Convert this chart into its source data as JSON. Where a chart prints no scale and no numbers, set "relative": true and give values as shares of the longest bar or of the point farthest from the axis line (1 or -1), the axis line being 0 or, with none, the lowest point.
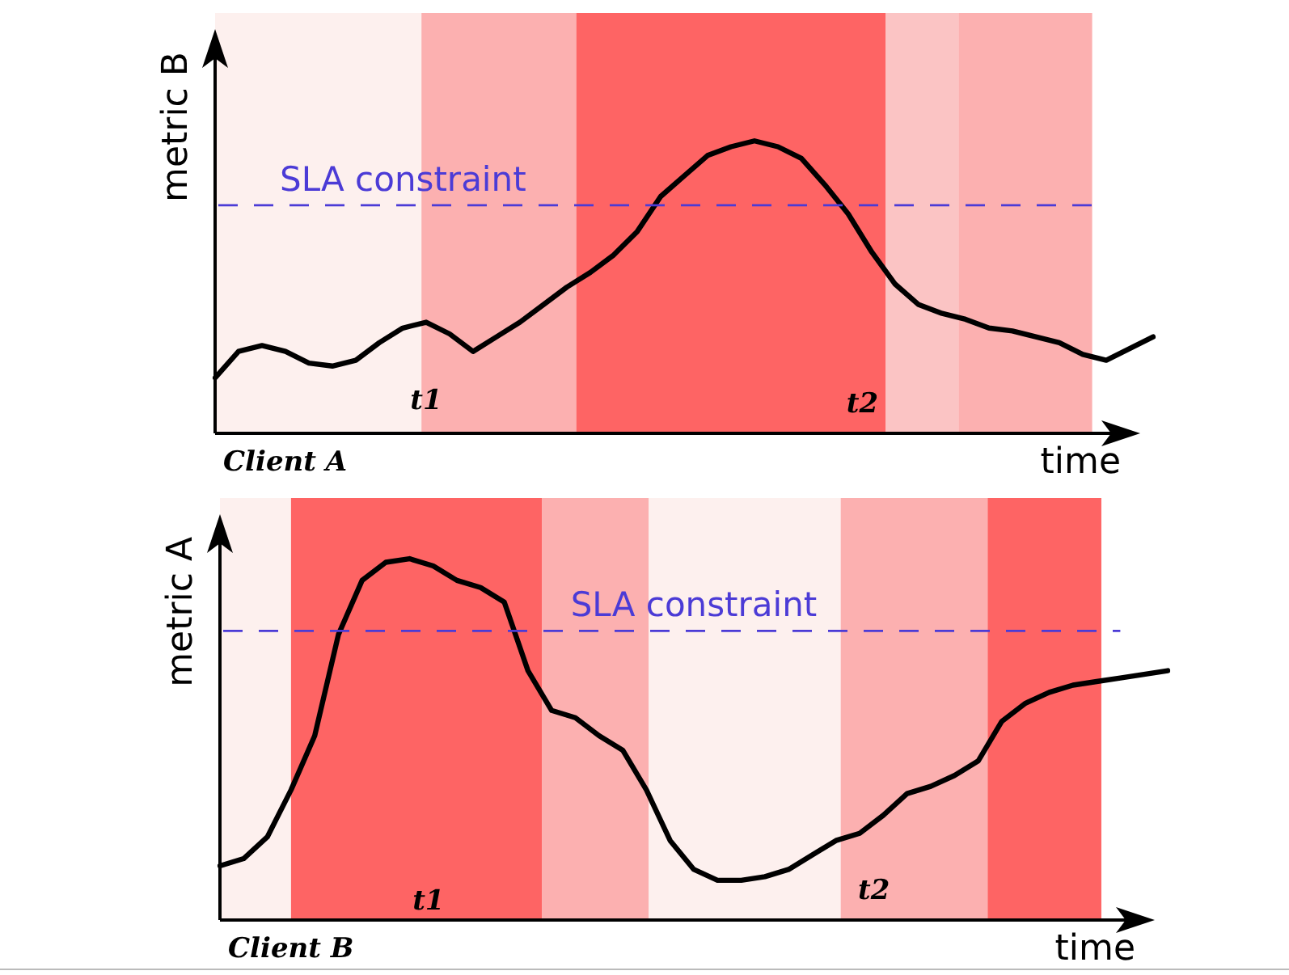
{
  "chart_data": [
    {
      "type": "line",
      "relative": true,
      "xlabel": "time",
      "ylabel": "metric B",
      "line_style": "solid",
      "categories": [
        null,
        null,
        null,
        null,
        null,
        null,
        null,
        null,
        null,
        null,
        null,
        null,
        null,
        null,
        null,
        null,
        null,
        null,
        null,
        null,
        null,
        null,
        null,
        null,
        null,
        null,
        null,
        null,
        null,
        null,
        null,
        null,
        null,
        null,
        null,
        null,
        null,
        null,
        null,
        null,
        null
      ],
      "series": [
        {
          "color": "#000000",
          "values": [
            0.19,
            0.28,
            0.3,
            0.28,
            0.24,
            0.23,
            0.25,
            0.31,
            0.36,
            0.38,
            0.34,
            0.28,
            0.33,
            0.38,
            0.44,
            0.5,
            0.55,
            0.61,
            0.69,
            0.81,
            0.88,
            0.95,
            0.98,
            1.0,
            0.98,
            0.94,
            0.85,
            0.75,
            0.62,
            0.51,
            0.44,
            0.41,
            0.39,
            0.36,
            0.35,
            0.33,
            0.31,
            0.27,
            0.25,
            0.29,
            0.33
          ]
        }
      ],
      "ref_lines": [
        {
          "axis": "y",
          "value": 0.78,
          "label": "SLA constraint",
          "color": "#4b3bd6",
          "line_style": "dashed"
        }
      ],
      "annotations": [
        "t1",
        "t2",
        "Client A"
      ]
    },
    {
      "type": "line",
      "relative": true,
      "xlabel": "time",
      "ylabel": "metric A",
      "line_style": "solid",
      "categories": [
        null,
        null,
        null,
        null,
        null,
        null,
        null,
        null,
        null,
        null,
        null,
        null,
        null,
        null,
        null,
        null,
        null,
        null,
        null,
        null,
        null,
        null,
        null,
        null,
        null,
        null,
        null,
        null,
        null,
        null,
        null,
        null,
        null,
        null,
        null,
        null,
        null,
        null,
        null,
        null,
        null
      ],
      "series": [
        {
          "color": "#000000",
          "values": [
            0.15,
            0.17,
            0.23,
            0.36,
            0.51,
            0.79,
            0.94,
            0.99,
            1.0,
            0.98,
            0.94,
            0.92,
            0.88,
            0.69,
            0.58,
            0.56,
            0.51,
            0.47,
            0.36,
            0.22,
            0.14,
            0.11,
            0.11,
            0.12,
            0.14,
            0.18,
            0.22,
            0.24,
            0.29,
            0.35,
            0.37,
            0.4,
            0.44,
            0.55,
            0.6,
            0.63,
            0.65,
            0.66,
            0.67,
            0.68,
            0.69
          ]
        }
      ],
      "ref_lines": [
        {
          "axis": "y",
          "value": 0.8,
          "label": "SLA constraint",
          "color": "#4b3bd6",
          "line_style": "dashed"
        }
      ],
      "annotations": [
        "t1",
        "t2",
        "Client B"
      ]
    }
  ]
}
